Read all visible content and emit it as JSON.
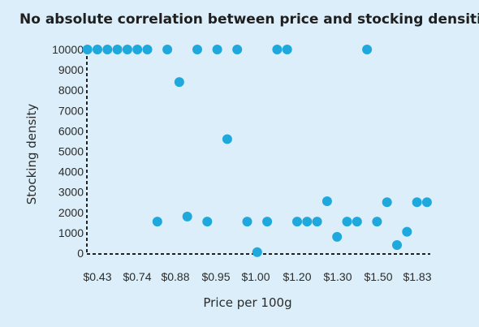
{
  "chart_data": {
    "type": "scatter",
    "title": "No absolute correlation between price and stocking densities",
    "xlabel": "Price per 100g",
    "ylabel": "Stocking density",
    "x_tick_labels": [
      "$0.43",
      "$0.74",
      "$0.88",
      "$0.95",
      "$1.00",
      "$1.20",
      "$1.30",
      "$1.50",
      "$1.83"
    ],
    "x_note": "categorical price axis; x values are positions between 0 and 8 on the tick index scale",
    "ylim": [
      0,
      10000
    ],
    "y_ticks": [
      0,
      1000,
      2000,
      3000,
      4000,
      5000,
      6000,
      7000,
      8000,
      9000,
      10000
    ],
    "grid": false,
    "color": "#1fa8dc",
    "points": [
      {
        "x": -0.25,
        "y": 10000
      },
      {
        "x": 0.0,
        "y": 10000
      },
      {
        "x": 0.25,
        "y": 10000
      },
      {
        "x": 0.5,
        "y": 10000
      },
      {
        "x": 0.75,
        "y": 10000
      },
      {
        "x": 1.0,
        "y": 10000
      },
      {
        "x": 1.25,
        "y": 10000
      },
      {
        "x": 1.75,
        "y": 10000
      },
      {
        "x": 2.5,
        "y": 10000
      },
      {
        "x": 3.0,
        "y": 10000
      },
      {
        "x": 3.5,
        "y": 10000
      },
      {
        "x": 4.5,
        "y": 10000
      },
      {
        "x": 4.75,
        "y": 10000
      },
      {
        "x": 6.75,
        "y": 10000
      },
      {
        "x": 2.05,
        "y": 8400
      },
      {
        "x": 3.25,
        "y": 5600
      },
      {
        "x": 1.5,
        "y": 1550
      },
      {
        "x": 2.25,
        "y": 1800
      },
      {
        "x": 2.75,
        "y": 1550
      },
      {
        "x": 3.75,
        "y": 1550
      },
      {
        "x": 4.0,
        "y": 50
      },
      {
        "x": 4.25,
        "y": 1550
      },
      {
        "x": 5.0,
        "y": 1550
      },
      {
        "x": 5.25,
        "y": 1550
      },
      {
        "x": 5.5,
        "y": 1550
      },
      {
        "x": 5.75,
        "y": 2550
      },
      {
        "x": 6.0,
        "y": 800
      },
      {
        "x": 6.25,
        "y": 1550
      },
      {
        "x": 6.5,
        "y": 1550
      },
      {
        "x": 7.0,
        "y": 1550
      },
      {
        "x": 7.25,
        "y": 2500
      },
      {
        "x": 7.5,
        "y": 400
      },
      {
        "x": 7.75,
        "y": 1050
      },
      {
        "x": 8.0,
        "y": 2500
      },
      {
        "x": 8.25,
        "y": 2500
      }
    ]
  }
}
